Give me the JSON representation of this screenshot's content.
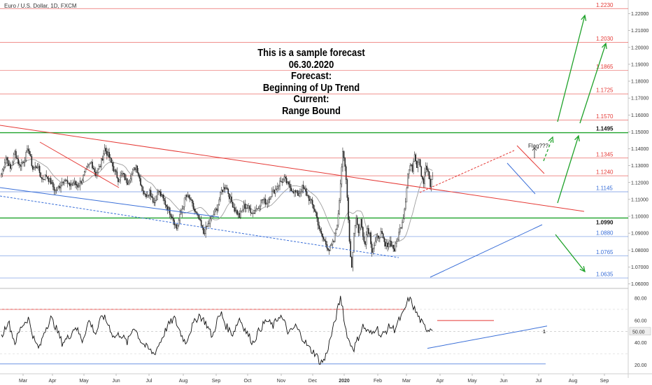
{
  "symbol": "Euro / U.S. Dollar, 1D, FXCM",
  "forecast_text": {
    "line1": "This is a sample forecast",
    "line2": "06.30.2020",
    "line3": "Forecast:",
    "line4": "Beginning of Up Trend",
    "line5": "Current:",
    "line6": "Range Bound"
  },
  "flag_label": "Flag???",
  "colors": {
    "red_level": "#e53935",
    "blue_level": "#3a6fd8",
    "green_level": "#1fa22a",
    "arrow_green": "#1fa22a",
    "candle": "#222222",
    "ma": "#9e9e9e",
    "oscillator": "#111111"
  },
  "chart_data": [
    {
      "type": "candlestick",
      "symbol": "EURUSD",
      "timeframe": "1D",
      "x_tick_labels": [
        "Mar",
        "Apr",
        "May",
        "Jun",
        "Jul",
        "Aug",
        "Sep",
        "Oct",
        "Nov",
        "Dec",
        "2020",
        "Feb",
        "Mar",
        "Apr",
        "May",
        "Jun",
        "Jul",
        "Aug",
        "Sep"
      ],
      "y_tick_labels": [
        "1.22000",
        "1.21000",
        "1.20000",
        "1.19000",
        "1.18000",
        "1.17000",
        "1.16000",
        "1.15000",
        "1.14000",
        "1.13000",
        "1.12000",
        "1.11000",
        "1.10000",
        "1.09000",
        "1.08000",
        "1.07000",
        "1.06000"
      ],
      "ylim": [
        1.058,
        1.225
      ],
      "levels": [
        {
          "price": 1.223,
          "label": "1.2230",
          "kind": "resistance-forecast",
          "color": "red"
        },
        {
          "price": 1.203,
          "label": "1.2030",
          "kind": "resistance-forecast",
          "color": "red"
        },
        {
          "price": 1.1865,
          "label": "1.1865",
          "kind": "resistance-forecast",
          "color": "red"
        },
        {
          "price": 1.1725,
          "label": "1.1725",
          "kind": "resistance-forecast",
          "color": "red"
        },
        {
          "price": 1.157,
          "label": "1.1570",
          "kind": "resistance-forecast",
          "color": "red"
        },
        {
          "price": 1.1495,
          "label": "1.1495",
          "kind": "range-top",
          "color": "green"
        },
        {
          "price": 1.1345,
          "label": "1.1345",
          "kind": "resistance",
          "color": "red"
        },
        {
          "price": 1.124,
          "label": "1.1240",
          "kind": "resistance",
          "color": "red"
        },
        {
          "price": 1.1145,
          "label": "1.1145",
          "kind": "support",
          "color": "blue"
        },
        {
          "price": 1.099,
          "label": "1.0990",
          "kind": "range-bottom",
          "color": "green"
        },
        {
          "price": 1.088,
          "label": "1.0880",
          "kind": "support",
          "color": "blue"
        },
        {
          "price": 1.0765,
          "label": "1.0765",
          "kind": "support",
          "color": "blue"
        },
        {
          "price": 1.0635,
          "label": "1.0635",
          "kind": "support",
          "color": "blue"
        }
      ],
      "price_waypoints": [
        [
          0,
          1.125
        ],
        [
          4,
          1.135
        ],
        [
          8,
          1.128
        ],
        [
          12,
          1.138
        ],
        [
          16,
          1.13
        ],
        [
          20,
          1.133
        ],
        [
          24,
          1.14
        ],
        [
          28,
          1.128
        ],
        [
          32,
          1.13
        ],
        [
          36,
          1.122
        ],
        [
          40,
          1.124
        ],
        [
          44,
          1.12
        ],
        [
          48,
          1.115
        ],
        [
          52,
          1.118
        ],
        [
          56,
          1.123
        ],
        [
          60,
          1.118
        ],
        [
          64,
          1.12
        ],
        [
          68,
          1.118
        ],
        [
          72,
          1.122
        ],
        [
          76,
          1.128
        ],
        [
          80,
          1.132
        ],
        [
          84,
          1.125
        ],
        [
          88,
          1.13
        ],
        [
          92,
          1.14
        ],
        [
          96,
          1.135
        ],
        [
          100,
          1.128
        ],
        [
          104,
          1.122
        ],
        [
          108,
          1.125
        ],
        [
          112,
          1.12
        ],
        [
          116,
          1.125
        ],
        [
          120,
          1.13
        ],
        [
          124,
          1.12
        ],
        [
          128,
          1.112
        ],
        [
          132,
          1.115
        ],
        [
          136,
          1.108
        ],
        [
          140,
          1.115
        ],
        [
          144,
          1.11
        ],
        [
          148,
          1.105
        ],
        [
          152,
          1.1
        ],
        [
          156,
          1.093
        ],
        [
          160,
          1.102
        ],
        [
          164,
          1.112
        ],
        [
          168,
          1.11
        ],
        [
          172,
          1.103
        ],
        [
          176,
          1.098
        ],
        [
          180,
          1.09
        ],
        [
          184,
          1.095
        ],
        [
          188,
          1.1
        ],
        [
          192,
          1.105
        ],
        [
          196,
          1.115
        ],
        [
          200,
          1.118
        ],
        [
          204,
          1.11
        ],
        [
          208,
          1.104
        ],
        [
          212,
          1.1
        ],
        [
          216,
          1.106
        ],
        [
          220,
          1.105
        ],
        [
          224,
          1.102
        ],
        [
          228,
          1.105
        ],
        [
          232,
          1.11
        ],
        [
          236,
          1.108
        ],
        [
          240,
          1.113
        ],
        [
          244,
          1.116
        ],
        [
          248,
          1.12
        ],
        [
          252,
          1.122
        ],
        [
          256,
          1.118
        ],
        [
          260,
          1.115
        ],
        [
          264,
          1.113
        ],
        [
          268,
          1.117
        ],
        [
          272,
          1.113
        ],
        [
          276,
          1.108
        ],
        [
          280,
          1.102
        ],
        [
          284,
          1.09
        ],
        [
          288,
          1.085
        ],
        [
          292,
          1.08
        ],
        [
          296,
          1.085
        ],
        [
          300,
          1.1
        ],
        [
          302,
          1.12
        ],
        [
          304,
          1.14
        ],
        [
          306,
          1.13
        ],
        [
          308,
          1.11
        ],
        [
          310,
          1.085
        ],
        [
          312,
          1.07
        ],
        [
          314,
          1.09
        ],
        [
          316,
          1.1
        ],
        [
          318,
          1.09
        ],
        [
          320,
          1.098
        ],
        [
          322,
          1.088
        ],
        [
          324,
          1.085
        ],
        [
          326,
          1.093
        ],
        [
          328,
          1.09
        ],
        [
          330,
          1.08
        ],
        [
          334,
          1.086
        ],
        [
          338,
          1.09
        ],
        [
          342,
          1.082
        ],
        [
          346,
          1.085
        ],
        [
          350,
          1.08
        ],
        [
          354,
          1.09
        ],
        [
          358,
          1.1
        ],
        [
          360,
          1.11
        ],
        [
          362,
          1.125
        ],
        [
          364,
          1.13
        ],
        [
          366,
          1.128
        ],
        [
          368,
          1.138
        ],
        [
          370,
          1.13
        ],
        [
          372,
          1.135
        ],
        [
          374,
          1.125
        ],
        [
          376,
          1.12
        ],
        [
          378,
          1.13
        ],
        [
          380,
          1.125
        ],
        [
          382,
          1.118
        ],
        [
          384,
          1.124
        ]
      ],
      "oscillator": {
        "y_tick_labels": [
          "80.00",
          "60.00",
          "50.00",
          "40.00",
          "20.00"
        ],
        "ylim": [
          15,
          86
        ],
        "current_value_label": "50.00",
        "levels": [
          70,
          50,
          30,
          21
        ],
        "marker_label": "1",
        "waypoints": [
          [
            0,
            45
          ],
          [
            6,
            60
          ],
          [
            12,
            40
          ],
          [
            18,
            55
          ],
          [
            24,
            62
          ],
          [
            30,
            40
          ],
          [
            34,
            35
          ],
          [
            38,
            50
          ],
          [
            44,
            62
          ],
          [
            48,
            55
          ],
          [
            54,
            40
          ],
          [
            60,
            45
          ],
          [
            66,
            55
          ],
          [
            72,
            42
          ],
          [
            78,
            60
          ],
          [
            84,
            48
          ],
          [
            90,
            65
          ],
          [
            96,
            55
          ],
          [
            100,
            45
          ],
          [
            106,
            48
          ],
          [
            112,
            40
          ],
          [
            118,
            55
          ],
          [
            124,
            42
          ],
          [
            130,
            35
          ],
          [
            136,
            30
          ],
          [
            142,
            42
          ],
          [
            148,
            55
          ],
          [
            154,
            62
          ],
          [
            160,
            48
          ],
          [
            164,
            40
          ],
          [
            170,
            55
          ],
          [
            176,
            65
          ],
          [
            182,
            58
          ],
          [
            188,
            45
          ],
          [
            192,
            60
          ],
          [
            196,
            66
          ],
          [
            200,
            55
          ],
          [
            206,
            48
          ],
          [
            212,
            62
          ],
          [
            218,
            50
          ],
          [
            224,
            40
          ],
          [
            230,
            52
          ],
          [
            236,
            60
          ],
          [
            242,
            55
          ],
          [
            248,
            65
          ],
          [
            252,
            58
          ],
          [
            256,
            48
          ],
          [
            262,
            55
          ],
          [
            268,
            45
          ],
          [
            274,
            35
          ],
          [
            280,
            30
          ],
          [
            284,
            22
          ],
          [
            288,
            25
          ],
          [
            292,
            40
          ],
          [
            296,
            55
          ],
          [
            300,
            72
          ],
          [
            302,
            80
          ],
          [
            304,
            72
          ],
          [
            306,
            55
          ],
          [
            310,
            40
          ],
          [
            314,
            35
          ],
          [
            318,
            45
          ],
          [
            322,
            55
          ],
          [
            326,
            50
          ],
          [
            330,
            48
          ],
          [
            334,
            55
          ],
          [
            338,
            45
          ],
          [
            342,
            50
          ],
          [
            346,
            55
          ],
          [
            350,
            52
          ],
          [
            354,
            60
          ],
          [
            358,
            66
          ],
          [
            360,
            72
          ],
          [
            363,
            80
          ],
          [
            366,
            75
          ],
          [
            368,
            70
          ],
          [
            372,
            62
          ],
          [
            376,
            55
          ],
          [
            380,
            52
          ],
          [
            384,
            54
          ]
        ]
      }
    }
  ]
}
